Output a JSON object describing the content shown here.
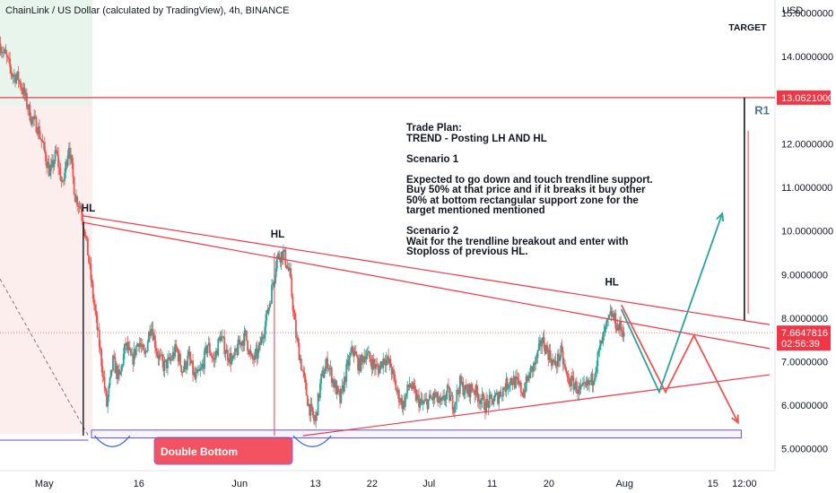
{
  "header": {
    "symbol_title": "ChainLink / US Dollar (calculated by TradingView), 4h, BINANCE",
    "currency": "USD"
  },
  "chart_data": {
    "type": "candlestick",
    "series_name": "LINKUSD",
    "interval": "4h",
    "ylim": [
      4.5,
      15.3
    ],
    "y_ticks": [
      {
        "label": "15.0000000",
        "value": 15
      },
      {
        "label": "14.0000000",
        "value": 14
      },
      {
        "label": "12.0000000",
        "value": 12
      },
      {
        "label": "11.0000000",
        "value": 11
      },
      {
        "label": "10.0000000",
        "value": 10
      },
      {
        "label": "9.0000000",
        "value": 9
      },
      {
        "label": "8.0000000",
        "value": 8
      },
      {
        "label": "7.0000000",
        "value": 7
      },
      {
        "label": "6.0000000",
        "value": 6
      },
      {
        "label": "5.0000000",
        "value": 5
      }
    ],
    "x_ticks": [
      {
        "label": "May",
        "day": 0
      },
      {
        "label": "16",
        "day": 15
      },
      {
        "label": "Jun",
        "day": 31
      },
      {
        "label": "13",
        "day": 43
      },
      {
        "label": "22",
        "day": 52
      },
      {
        "label": "Jul",
        "day": 61
      },
      {
        "label": "11",
        "day": 71
      },
      {
        "label": "20",
        "day": 80
      },
      {
        "label": "Aug",
        "day": 92
      },
      {
        "label": "15",
        "day": 106
      },
      {
        "label": "12:00",
        "day": 111
      }
    ],
    "xlim": [
      -7,
      115
    ],
    "price_path": [
      [
        -7,
        14.3
      ],
      [
        -6,
        14.0
      ],
      [
        -5,
        13.6
      ],
      [
        -4,
        13.5
      ],
      [
        -3,
        13.1
      ],
      [
        -2,
        12.6
      ],
      [
        -1,
        12.4
      ],
      [
        0,
        11.9
      ],
      [
        1,
        11.3
      ],
      [
        2,
        11.8
      ],
      [
        3,
        11.0
      ],
      [
        4,
        12.0
      ],
      [
        5,
        10.8
      ],
      [
        6,
        10.5
      ],
      [
        7,
        9.5
      ],
      [
        8,
        8.3
      ],
      [
        9,
        7.2
      ],
      [
        10,
        6.0
      ],
      [
        11,
        7.0
      ],
      [
        12,
        6.6
      ],
      [
        13,
        7.4
      ],
      [
        14,
        7.0
      ],
      [
        15,
        7.5
      ],
      [
        16,
        7.1
      ],
      [
        17,
        7.9
      ],
      [
        18,
        7.2
      ],
      [
        19,
        6.9
      ],
      [
        20,
        7.0
      ],
      [
        21,
        7.3
      ],
      [
        22,
        6.8
      ],
      [
        23,
        7.1
      ],
      [
        24,
        6.6
      ],
      [
        25,
        6.8
      ],
      [
        26,
        7.4
      ],
      [
        27,
        7.0
      ],
      [
        28,
        7.6
      ],
      [
        29,
        7.2
      ],
      [
        30,
        7.0
      ],
      [
        31,
        7.4
      ],
      [
        32,
        7.6
      ],
      [
        33,
        7.0
      ],
      [
        34,
        7.2
      ],
      [
        35,
        7.8
      ],
      [
        36,
        8.5
      ],
      [
        37,
        9.4
      ],
      [
        38,
        9.5
      ],
      [
        39,
        9.0
      ],
      [
        40,
        7.6
      ],
      [
        41,
        6.8
      ],
      [
        42,
        6.0
      ],
      [
        43,
        5.6
      ],
      [
        44,
        6.6
      ],
      [
        45,
        7.0
      ],
      [
        46,
        6.5
      ],
      [
        47,
        6.1
      ],
      [
        48,
        6.8
      ],
      [
        49,
        7.3
      ],
      [
        50,
        6.9
      ],
      [
        51,
        7.2
      ],
      [
        52,
        7.0
      ],
      [
        53,
        6.8
      ],
      [
        54,
        7.1
      ],
      [
        55,
        6.9
      ],
      [
        56,
        6.3
      ],
      [
        57,
        6.0
      ],
      [
        58,
        6.5
      ],
      [
        59,
        6.2
      ],
      [
        60,
        6.0
      ],
      [
        61,
        6.1
      ],
      [
        62,
        6.2
      ],
      [
        63,
        6.0
      ],
      [
        64,
        6.3
      ],
      [
        65,
        6.0
      ],
      [
        66,
        6.5
      ],
      [
        67,
        6.3
      ],
      [
        68,
        6.4
      ],
      [
        69,
        6.2
      ],
      [
        70,
        6.0
      ],
      [
        71,
        6.1
      ],
      [
        72,
        6.2
      ],
      [
        73,
        6.4
      ],
      [
        74,
        6.6
      ],
      [
        75,
        6.5
      ],
      [
        76,
        6.3
      ],
      [
        77,
        6.7
      ],
      [
        78,
        7.0
      ],
      [
        79,
        7.5
      ],
      [
        80,
        7.2
      ],
      [
        81,
        6.9
      ],
      [
        82,
        7.2
      ],
      [
        83,
        6.6
      ],
      [
        84,
        6.5
      ],
      [
        85,
        6.3
      ],
      [
        86,
        6.4
      ],
      [
        87,
        6.6
      ],
      [
        88,
        7.2
      ],
      [
        89,
        7.7
      ],
      [
        90,
        8.1
      ],
      [
        91,
        7.8
      ],
      [
        92,
        7.7
      ]
    ],
    "last_price": {
      "label": "7.6647816",
      "countdown": "02:56:39",
      "value": 7.665
    },
    "target_level": {
      "label": "13.0621000",
      "value": 13.06
    },
    "support_zone": {
      "top": 5.43,
      "bottom": 5.25
    },
    "upper_trendline": [
      [
        6,
        10.35
      ],
      [
        115,
        7.85
      ]
    ],
    "lower_trendline": [
      [
        41,
        5.3
      ],
      [
        115,
        6.7
      ]
    ],
    "projections": [
      {
        "color": "#ef5350",
        "points": [
          [
            91.5,
            8.3
          ],
          [
            98.5,
            6.3
          ],
          [
            103,
            7.6
          ],
          [
            110,
            5.6
          ]
        ]
      },
      {
        "color": "#26a69a",
        "points": [
          [
            91.5,
            8.2
          ],
          [
            97.5,
            6.3
          ],
          [
            107.5,
            10.4
          ]
        ]
      }
    ],
    "annotations": {
      "hl_labels": [
        {
          "text": "HL",
          "day": 7,
          "price": 10.45
        },
        {
          "text": "HL",
          "day": 37,
          "price": 9.85
        },
        {
          "text": "HL",
          "day": 90,
          "price": 8.75
        }
      ],
      "target_label": "TARGET",
      "r1_label": "R1",
      "double_bottom": "Double Bottom",
      "trade_plan": [
        "Trade Plan:",
        "TREND - Posting LH AND HL",
        "",
        "Scenario 1",
        "",
        "Expected to go down and touch trendline support.",
        "Buy 50% at that price and if it breaks it buy other",
        "50% at bottom rectangular support zone for the",
        "target mentioned mentioned",
        "",
        "Scenario 2",
        "Wait for the trendline breakout and enter with",
        "Stoploss of previous HL."
      ]
    },
    "colors": {
      "up": "#26a69a",
      "down": "#ef5350",
      "trendline": "#f23645",
      "support_box": "#6a4ee8",
      "label_bg": "#f23645",
      "bg_green": "#e8f5ec",
      "bg_red": "#fdeeee"
    }
  }
}
